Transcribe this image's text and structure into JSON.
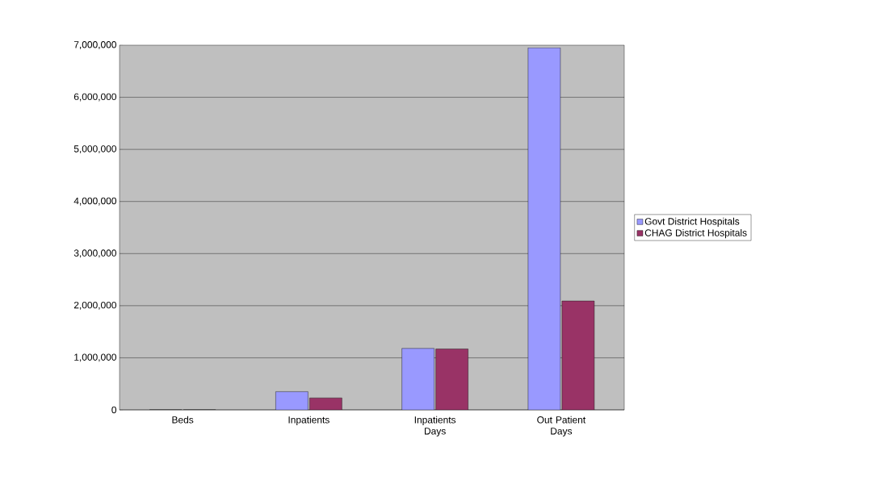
{
  "chart_data": {
    "type": "bar",
    "categories": [
      "Beds",
      "Inpatients",
      "Inpatients Days",
      "Out Patient Days"
    ],
    "series": [
      {
        "name": "Govt District  Hospitals",
        "color": "#9999ff",
        "values": [
          0,
          350000,
          1180000,
          6950000
        ]
      },
      {
        "name": "CHAG District  Hospitals",
        "color": "#993366",
        "values": [
          0,
          230000,
          1170000,
          2090000
        ]
      }
    ],
    "ylim": [
      0,
      7000000
    ],
    "yticks": [
      {
        "value": 0,
        "label": "0"
      },
      {
        "value": 1000000,
        "label": "1,000,000"
      },
      {
        "value": 2000000,
        "label": "2,000,000"
      },
      {
        "value": 3000000,
        "label": "3,000,000"
      },
      {
        "value": 4000000,
        "label": "4,000,000"
      },
      {
        "value": 5000000,
        "label": "5,000,000"
      },
      {
        "value": 6000000,
        "label": "6,000,000"
      },
      {
        "value": 7000000,
        "label": "7,000,000"
      }
    ],
    "grid": "y",
    "legend": "right"
  }
}
